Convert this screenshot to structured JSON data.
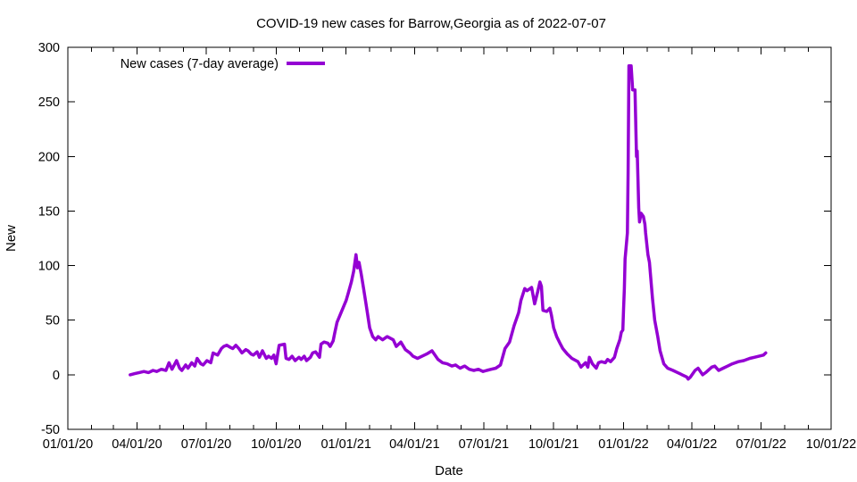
{
  "page": {
    "background": "#ffffff",
    "text_color": "#000000"
  },
  "chart_data": {
    "type": "line",
    "title": "COVID-19 new cases for Barrow,Georgia as of 2022-07-07",
    "xlabel": "Date",
    "ylabel": "New",
    "ylim": [
      -50,
      300
    ],
    "y_tick_step": 50,
    "y_tick_labels": [
      "-50",
      "0",
      "50",
      "100",
      "150",
      "200",
      "250",
      "300"
    ],
    "x_range_dates": [
      "2020-01-01",
      "2022-10-01"
    ],
    "x_tick_labels": [
      "01/01/20",
      "04/01/20",
      "07/01/20",
      "10/01/20",
      "01/01/21",
      "04/01/21",
      "07/01/21",
      "10/01/21",
      "01/01/22",
      "04/01/22",
      "07/01/22",
      "10/01/22"
    ],
    "x_minor_tick_interval_months": 1,
    "x_major_tick_interval_months": 3,
    "grid": false,
    "axis_color": "#000000",
    "legend": {
      "position": "top-left-inside",
      "entries": [
        "New cases (7-day average)"
      ]
    },
    "series": [
      {
        "name": "New cases (7-day average)",
        "color": "#9400d3",
        "line_width": 3.5,
        "dates": [
          "2020-03-23",
          "2020-03-29",
          "2020-04-04",
          "2020-04-10",
          "2020-04-16",
          "2020-04-22",
          "2020-04-27",
          "2020-05-03",
          "2020-05-09",
          "2020-05-13",
          "2020-05-17",
          "2020-05-23",
          "2020-05-27",
          "2020-05-30",
          "2020-06-04",
          "2020-06-07",
          "2020-06-12",
          "2020-06-16",
          "2020-06-19",
          "2020-06-24",
          "2020-06-27",
          "2020-07-02",
          "2020-07-07",
          "2020-07-10",
          "2020-07-16",
          "2020-07-21",
          "2020-07-24",
          "2020-07-28",
          "2020-08-02",
          "2020-08-05",
          "2020-08-09",
          "2020-08-13",
          "2020-08-17",
          "2020-08-22",
          "2020-08-25",
          "2020-08-29",
          "2020-09-01",
          "2020-09-06",
          "2020-09-09",
          "2020-09-13",
          "2020-09-18",
          "2020-09-21",
          "2020-09-25",
          "2020-09-28",
          "2020-10-01",
          "2020-10-05",
          "2020-10-12",
          "2020-10-14",
          "2020-10-18",
          "2020-10-22",
          "2020-10-26",
          "2020-10-31",
          "2020-11-03",
          "2020-11-07",
          "2020-11-10",
          "2020-11-15",
          "2020-11-18",
          "2020-11-22",
          "2020-11-27",
          "2020-11-29",
          "2020-12-03",
          "2020-12-08",
          "2020-12-11",
          "2020-12-15",
          "2020-12-17",
          "2020-12-20",
          "2020-12-26",
          "2021-01-01",
          "2021-01-04",
          "2021-01-08",
          "2021-01-11",
          "2021-01-14",
          "2021-01-16",
          "2021-01-18",
          "2021-01-21",
          "2021-01-24",
          "2021-01-27",
          "2021-01-29",
          "2021-02-01",
          "2021-02-05",
          "2021-02-09",
          "2021-02-12",
          "2021-02-18",
          "2021-02-24",
          "2021-03-04",
          "2021-03-08",
          "2021-03-14",
          "2021-03-20",
          "2021-03-26",
          "2021-03-30",
          "2021-04-05",
          "2021-04-11",
          "2021-04-17",
          "2021-04-24",
          "2021-05-02",
          "2021-05-08",
          "2021-05-14",
          "2021-05-20",
          "2021-05-25",
          "2021-05-31",
          "2021-06-06",
          "2021-06-12",
          "2021-06-18",
          "2021-06-24",
          "2021-06-30",
          "2021-07-05",
          "2021-07-11",
          "2021-07-17",
          "2021-07-23",
          "2021-07-29",
          "2021-08-04",
          "2021-08-10",
          "2021-08-16",
          "2021-08-19",
          "2021-08-24",
          "2021-08-27",
          "2021-09-02",
          "2021-09-06",
          "2021-09-10",
          "2021-09-13",
          "2021-09-15",
          "2021-09-17",
          "2021-09-22",
          "2021-09-26",
          "2021-09-28",
          "2021-10-01",
          "2021-10-05",
          "2021-10-10",
          "2021-10-13",
          "2021-10-19",
          "2021-10-25",
          "2021-11-02",
          "2021-11-06",
          "2021-11-12",
          "2021-11-15",
          "2021-11-17",
          "2021-11-21",
          "2021-11-26",
          "2021-11-29",
          "2021-12-03",
          "2021-12-08",
          "2021-12-11",
          "2021-12-15",
          "2021-12-20",
          "2021-12-23",
          "2021-12-27",
          "2021-12-29",
          "2021-12-31",
          "2022-01-01",
          "2022-01-02",
          "2022-01-03",
          "2022-01-06",
          "2022-01-07",
          "2022-01-08",
          "2022-01-11",
          "2022-01-13",
          "2022-01-16",
          "2022-01-18",
          "2022-01-19",
          "2022-01-21",
          "2022-01-22",
          "2022-01-24",
          "2022-01-27",
          "2022-01-29",
          "2022-01-30",
          "2022-02-02",
          "2022-02-04",
          "2022-02-08",
          "2022-02-11",
          "2022-02-15",
          "2022-02-18",
          "2022-02-23",
          "2022-02-28",
          "2022-03-07",
          "2022-03-13",
          "2022-03-19",
          "2022-03-25",
          "2022-03-27",
          "2022-03-30",
          "2022-04-05",
          "2022-04-09",
          "2022-04-15",
          "2022-04-19",
          "2022-04-27",
          "2022-05-01",
          "2022-05-06",
          "2022-05-12",
          "2022-05-18",
          "2022-05-24",
          "2022-06-01",
          "2022-06-08",
          "2022-06-16",
          "2022-06-22",
          "2022-06-28",
          "2022-07-04",
          "2022-07-07"
        ],
        "values": [
          0,
          1,
          2,
          3,
          2,
          4,
          3,
          5,
          4,
          11,
          5,
          13,
          6,
          4,
          9,
          6,
          11,
          8,
          15,
          10,
          9,
          13,
          11,
          20,
          18,
          24,
          26,
          27,
          25,
          24,
          27,
          24,
          20,
          23,
          22,
          19,
          18,
          21,
          16,
          22,
          15,
          17,
          15,
          18,
          10,
          27,
          28,
          15,
          14,
          17,
          13,
          16,
          14,
          17,
          13,
          16,
          20,
          21,
          16,
          28,
          30,
          29,
          26,
          31,
          38,
          48,
          58,
          68,
          75,
          85,
          95,
          110,
          98,
          103,
          92,
          79,
          66,
          57,
          43,
          35,
          32,
          35,
          32,
          35,
          32,
          26,
          30,
          23,
          20,
          17,
          15,
          17,
          19,
          22,
          14,
          11,
          10,
          8,
          9,
          6,
          8,
          5,
          4,
          5,
          3,
          4,
          5,
          6,
          9,
          24,
          30,
          45,
          57,
          68,
          79,
          77,
          80,
          65,
          76,
          85,
          81,
          59,
          58,
          61,
          55,
          43,
          35,
          28,
          24,
          19,
          15,
          12,
          7,
          11,
          7,
          16,
          10,
          6,
          11,
          12,
          11,
          14,
          12,
          16,
          24,
          32,
          39,
          41,
          60,
          79,
          106,
          130,
          185,
          283,
          283,
          261,
          261,
          200,
          205,
          153,
          140,
          148,
          145,
          138,
          130,
          110,
          103,
          70,
          50,
          35,
          22,
          10,
          6,
          4,
          2,
          0,
          -2,
          -4,
          -2,
          4,
          6,
          0,
          2,
          7,
          8,
          4,
          6,
          8,
          10,
          12,
          13,
          15,
          16,
          17,
          18,
          20
        ]
      }
    ]
  }
}
